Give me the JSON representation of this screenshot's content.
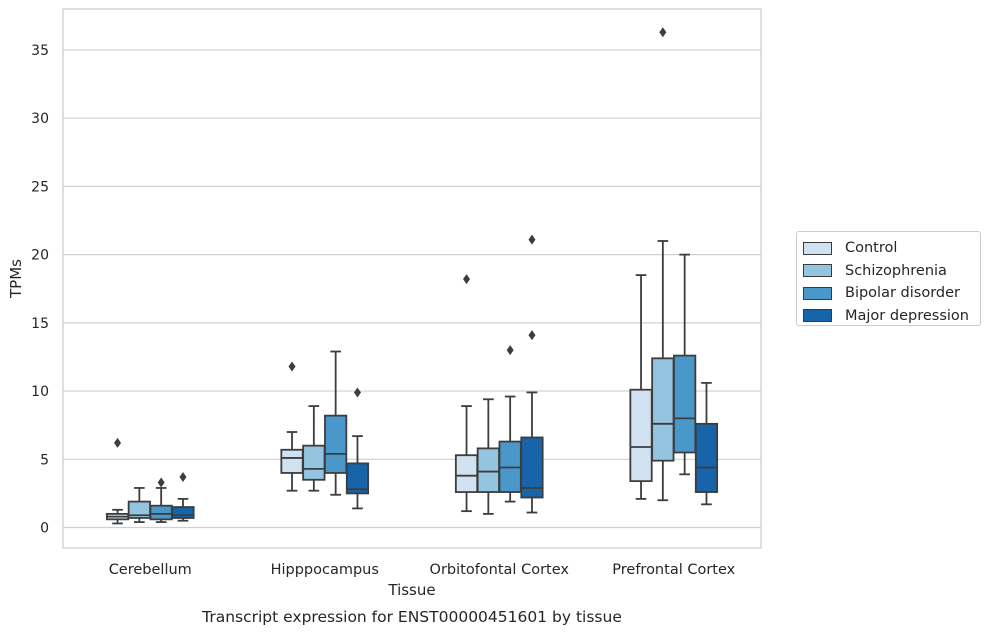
{
  "chart_data": {
    "type": "box",
    "title": "Transcript expression for ENST00000451601 by tissue",
    "xlabel": "Tissue",
    "ylabel": "TPMs",
    "ylim": [
      -1.5,
      38
    ],
    "yticks": [
      0,
      5,
      10,
      15,
      20,
      25,
      30,
      35
    ],
    "grid": "horizontal",
    "legend_position": "right",
    "categories": [
      "Cerebellum",
      "Hipppocampus",
      "Orbitofontal Cortex",
      "Prefrontal Cortex"
    ],
    "series": [
      {
        "name": "Control",
        "color": "#d0e1f2",
        "boxes": [
          {
            "whisker_low": 0.3,
            "q1": 0.6,
            "median": 0.8,
            "q3": 1.0,
            "whisker_high": 1.3,
            "outliers": [
              6.2
            ]
          },
          {
            "whisker_low": 2.7,
            "q1": 4.0,
            "median": 5.1,
            "q3": 5.7,
            "whisker_high": 7.0,
            "outliers": [
              11.8
            ]
          },
          {
            "whisker_low": 1.2,
            "q1": 2.6,
            "median": 3.8,
            "q3": 5.3,
            "whisker_high": 8.9,
            "outliers": [
              18.2
            ]
          },
          {
            "whisker_low": 2.1,
            "q1": 3.4,
            "median": 5.9,
            "q3": 10.1,
            "whisker_high": 18.5,
            "outliers": []
          }
        ]
      },
      {
        "name": "Schizophrenia",
        "color": "#94c4df",
        "boxes": [
          {
            "whisker_low": 0.4,
            "q1": 0.7,
            "median": 0.9,
            "q3": 1.9,
            "whisker_high": 2.9,
            "outliers": []
          },
          {
            "whisker_low": 2.7,
            "q1": 3.5,
            "median": 4.3,
            "q3": 6.0,
            "whisker_high": 8.9,
            "outliers": []
          },
          {
            "whisker_low": 1.0,
            "q1": 2.6,
            "median": 4.1,
            "q3": 5.8,
            "whisker_high": 9.4,
            "outliers": []
          },
          {
            "whisker_low": 2.0,
            "q1": 4.9,
            "median": 7.6,
            "q3": 12.4,
            "whisker_high": 21.0,
            "outliers": [
              36.3
            ]
          }
        ]
      },
      {
        "name": "Bipolar disorder",
        "color": "#4a98c9",
        "boxes": [
          {
            "whisker_low": 0.4,
            "q1": 0.6,
            "median": 1.0,
            "q3": 1.6,
            "whisker_high": 2.9,
            "outliers": [
              3.3
            ]
          },
          {
            "whisker_low": 2.4,
            "q1": 4.0,
            "median": 5.4,
            "q3": 8.2,
            "whisker_high": 12.9,
            "outliers": []
          },
          {
            "whisker_low": 1.9,
            "q1": 2.6,
            "median": 4.4,
            "q3": 6.3,
            "whisker_high": 9.6,
            "outliers": [
              13.0
            ]
          },
          {
            "whisker_low": 3.9,
            "q1": 5.5,
            "median": 8.0,
            "q3": 12.6,
            "whisker_high": 20.0,
            "outliers": []
          }
        ]
      },
      {
        "name": "Major depression",
        "color": "#1764ab",
        "boxes": [
          {
            "whisker_low": 0.5,
            "q1": 0.7,
            "median": 0.9,
            "q3": 1.5,
            "whisker_high": 2.1,
            "outliers": [
              3.7
            ]
          },
          {
            "whisker_low": 1.4,
            "q1": 2.5,
            "median": 2.8,
            "q3": 4.7,
            "whisker_high": 6.7,
            "outliers": [
              9.9
            ]
          },
          {
            "whisker_low": 1.1,
            "q1": 2.2,
            "median": 2.9,
            "q3": 6.6,
            "whisker_high": 9.9,
            "outliers": [
              14.1,
              21.1
            ]
          },
          {
            "whisker_low": 1.7,
            "q1": 2.6,
            "median": 4.4,
            "q3": 7.6,
            "whisker_high": 10.6,
            "outliers": []
          }
        ]
      }
    ]
  }
}
